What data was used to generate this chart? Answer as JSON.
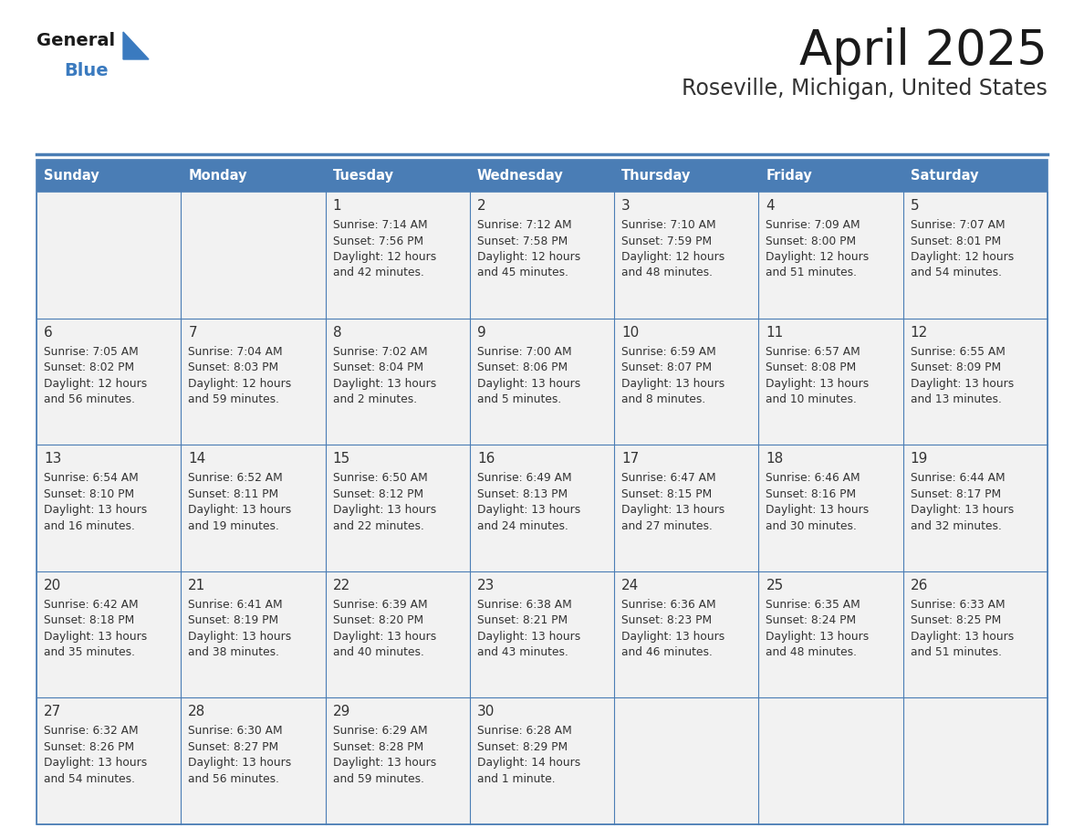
{
  "title": "April 2025",
  "subtitle": "Roseville, Michigan, United States",
  "days_of_week": [
    "Sunday",
    "Monday",
    "Tuesday",
    "Wednesday",
    "Thursday",
    "Friday",
    "Saturday"
  ],
  "header_bg": "#4a7db5",
  "header_text": "#ffffff",
  "cell_bg": "#f2f2f2",
  "cell_border": "#4a7db5",
  "day_number_color": "#333333",
  "cell_text_color": "#333333",
  "title_color": "#1a1a1a",
  "subtitle_color": "#333333",
  "logo_general_color": "#1a1a1a",
  "logo_blue_color": "#3a7abf",
  "weeks": [
    [
      {
        "day": null,
        "sunrise": null,
        "sunset": null,
        "daylight": null
      },
      {
        "day": null,
        "sunrise": null,
        "sunset": null,
        "daylight": null
      },
      {
        "day": 1,
        "sunrise": "7:14 AM",
        "sunset": "7:56 PM",
        "daylight": "12 hours\nand 42 minutes."
      },
      {
        "day": 2,
        "sunrise": "7:12 AM",
        "sunset": "7:58 PM",
        "daylight": "12 hours\nand 45 minutes."
      },
      {
        "day": 3,
        "sunrise": "7:10 AM",
        "sunset": "7:59 PM",
        "daylight": "12 hours\nand 48 minutes."
      },
      {
        "day": 4,
        "sunrise": "7:09 AM",
        "sunset": "8:00 PM",
        "daylight": "12 hours\nand 51 minutes."
      },
      {
        "day": 5,
        "sunrise": "7:07 AM",
        "sunset": "8:01 PM",
        "daylight": "12 hours\nand 54 minutes."
      }
    ],
    [
      {
        "day": 6,
        "sunrise": "7:05 AM",
        "sunset": "8:02 PM",
        "daylight": "12 hours\nand 56 minutes."
      },
      {
        "day": 7,
        "sunrise": "7:04 AM",
        "sunset": "8:03 PM",
        "daylight": "12 hours\nand 59 minutes."
      },
      {
        "day": 8,
        "sunrise": "7:02 AM",
        "sunset": "8:04 PM",
        "daylight": "13 hours\nand 2 minutes."
      },
      {
        "day": 9,
        "sunrise": "7:00 AM",
        "sunset": "8:06 PM",
        "daylight": "13 hours\nand 5 minutes."
      },
      {
        "day": 10,
        "sunrise": "6:59 AM",
        "sunset": "8:07 PM",
        "daylight": "13 hours\nand 8 minutes."
      },
      {
        "day": 11,
        "sunrise": "6:57 AM",
        "sunset": "8:08 PM",
        "daylight": "13 hours\nand 10 minutes."
      },
      {
        "day": 12,
        "sunrise": "6:55 AM",
        "sunset": "8:09 PM",
        "daylight": "13 hours\nand 13 minutes."
      }
    ],
    [
      {
        "day": 13,
        "sunrise": "6:54 AM",
        "sunset": "8:10 PM",
        "daylight": "13 hours\nand 16 minutes."
      },
      {
        "day": 14,
        "sunrise": "6:52 AM",
        "sunset": "8:11 PM",
        "daylight": "13 hours\nand 19 minutes."
      },
      {
        "day": 15,
        "sunrise": "6:50 AM",
        "sunset": "8:12 PM",
        "daylight": "13 hours\nand 22 minutes."
      },
      {
        "day": 16,
        "sunrise": "6:49 AM",
        "sunset": "8:13 PM",
        "daylight": "13 hours\nand 24 minutes."
      },
      {
        "day": 17,
        "sunrise": "6:47 AM",
        "sunset": "8:15 PM",
        "daylight": "13 hours\nand 27 minutes."
      },
      {
        "day": 18,
        "sunrise": "6:46 AM",
        "sunset": "8:16 PM",
        "daylight": "13 hours\nand 30 minutes."
      },
      {
        "day": 19,
        "sunrise": "6:44 AM",
        "sunset": "8:17 PM",
        "daylight": "13 hours\nand 32 minutes."
      }
    ],
    [
      {
        "day": 20,
        "sunrise": "6:42 AM",
        "sunset": "8:18 PM",
        "daylight": "13 hours\nand 35 minutes."
      },
      {
        "day": 21,
        "sunrise": "6:41 AM",
        "sunset": "8:19 PM",
        "daylight": "13 hours\nand 38 minutes."
      },
      {
        "day": 22,
        "sunrise": "6:39 AM",
        "sunset": "8:20 PM",
        "daylight": "13 hours\nand 40 minutes."
      },
      {
        "day": 23,
        "sunrise": "6:38 AM",
        "sunset": "8:21 PM",
        "daylight": "13 hours\nand 43 minutes."
      },
      {
        "day": 24,
        "sunrise": "6:36 AM",
        "sunset": "8:23 PM",
        "daylight": "13 hours\nand 46 minutes."
      },
      {
        "day": 25,
        "sunrise": "6:35 AM",
        "sunset": "8:24 PM",
        "daylight": "13 hours\nand 48 minutes."
      },
      {
        "day": 26,
        "sunrise": "6:33 AM",
        "sunset": "8:25 PM",
        "daylight": "13 hours\nand 51 minutes."
      }
    ],
    [
      {
        "day": 27,
        "sunrise": "6:32 AM",
        "sunset": "8:26 PM",
        "daylight": "13 hours\nand 54 minutes."
      },
      {
        "day": 28,
        "sunrise": "6:30 AM",
        "sunset": "8:27 PM",
        "daylight": "13 hours\nand 56 minutes."
      },
      {
        "day": 29,
        "sunrise": "6:29 AM",
        "sunset": "8:28 PM",
        "daylight": "13 hours\nand 59 minutes."
      },
      {
        "day": 30,
        "sunrise": "6:28 AM",
        "sunset": "8:29 PM",
        "daylight": "14 hours\nand 1 minute."
      },
      {
        "day": null,
        "sunrise": null,
        "sunset": null,
        "daylight": null
      },
      {
        "day": null,
        "sunrise": null,
        "sunset": null,
        "daylight": null
      },
      {
        "day": null,
        "sunrise": null,
        "sunset": null,
        "daylight": null
      }
    ]
  ]
}
